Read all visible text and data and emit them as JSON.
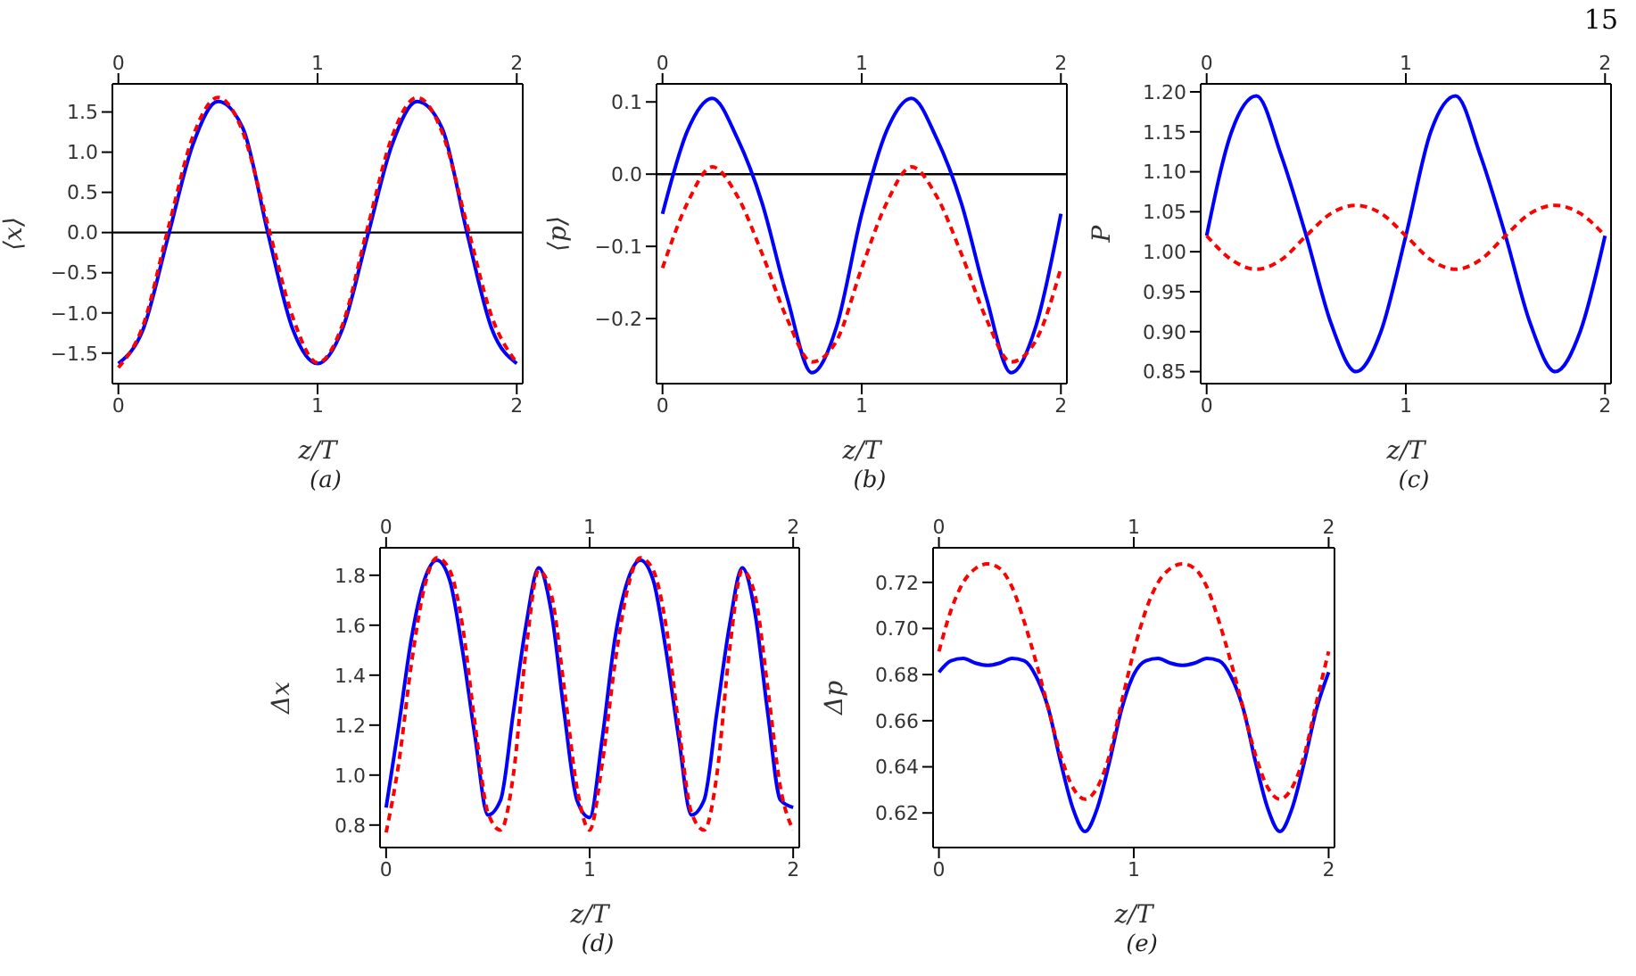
{
  "chart_data": [
    {
      "type": "line",
      "title": "(a)",
      "xlabel": "z/T",
      "ylabel": "⟨x⟩",
      "xlim": [
        -0.03,
        2.03
      ],
      "xticks": [
        0,
        1,
        2
      ],
      "x2lim": [
        -0.03,
        2.03
      ],
      "x2ticks": [
        0,
        1,
        2
      ],
      "ylim": [
        -1.88,
        1.85
      ],
      "yticks": [
        {
          "value": -1.5,
          "label": "−1.5"
        },
        {
          "value": -1,
          "label": "−1.0"
        },
        {
          "value": -0.5,
          "label": "−0.5"
        },
        {
          "value": 0,
          "label": "0.0"
        },
        {
          "value": 0.5,
          "label": "0.5"
        },
        {
          "value": 1,
          "label": "1.0"
        },
        {
          "value": 1.5,
          "label": "1.5"
        }
      ],
      "ref_lines": [
        {
          "axis": "y",
          "value": 0,
          "color": "#000000"
        }
      ],
      "x": [
        0,
        0.125,
        0.25,
        0.375,
        0.5,
        0.625,
        0.75,
        0.875,
        1,
        1.125,
        1.25,
        1.375,
        1.5,
        1.625,
        1.75,
        1.875,
        2
      ],
      "series": [
        {
          "color": "#0000ff",
          "line_style": "solid",
          "values": [
            -1.63,
            -1.2,
            -0.05,
            1.1,
            1.63,
            1.3,
            0,
            -1.2,
            -1.63,
            -1.2,
            -0.05,
            1.1,
            1.63,
            1.3,
            0,
            -1.2,
            -1.63
          ]
        },
        {
          "color": "#ff0000",
          "line_style": "dashed",
          "values": [
            -1.68,
            -1.15,
            0.05,
            1.2,
            1.68,
            1.25,
            0.1,
            -1.05,
            -1.62,
            -1.15,
            0.05,
            1.2,
            1.68,
            1.25,
            0.1,
            -1.05,
            -1.62
          ]
        }
      ]
    },
    {
      "type": "line",
      "title": "(b)",
      "xlabel": "z/T",
      "ylabel": "⟨p⟩",
      "xlim": [
        -0.03,
        2.03
      ],
      "xticks": [
        0,
        1,
        2
      ],
      "x2lim": [
        -0.03,
        2.03
      ],
      "x2ticks": [
        0,
        1,
        2
      ],
      "ylim": [
        -0.29,
        0.125
      ],
      "yticks": [
        {
          "value": -0.2,
          "label": "−0.2"
        },
        {
          "value": -0.1,
          "label": "−0.1"
        },
        {
          "value": 0,
          "label": "0.0"
        },
        {
          "value": 0.1,
          "label": "0.1"
        }
      ],
      "ref_lines": [
        {
          "axis": "y",
          "value": 0,
          "color": "#000000"
        }
      ],
      "x": [
        0,
        0.125,
        0.25,
        0.375,
        0.5,
        0.625,
        0.75,
        0.875,
        1,
        1.125,
        1.25,
        1.375,
        1.5,
        1.625,
        1.75,
        1.875,
        2
      ],
      "series": [
        {
          "color": "#0000ff",
          "line_style": "solid",
          "values": [
            -0.055,
            0.06,
            0.105,
            0.05,
            -0.04,
            -0.17,
            -0.275,
            -0.21,
            -0.055,
            0.06,
            0.105,
            0.05,
            -0.04,
            -0.17,
            -0.275,
            -0.21,
            -0.055
          ]
        },
        {
          "color": "#ff0000",
          "line_style": "dashed",
          "values": [
            -0.13,
            -0.04,
            0.01,
            -0.03,
            -0.11,
            -0.2,
            -0.26,
            -0.23,
            -0.13,
            -0.04,
            0.01,
            -0.03,
            -0.11,
            -0.2,
            -0.26,
            -0.23,
            -0.13
          ]
        }
      ]
    },
    {
      "type": "line",
      "title": "(c)",
      "xlabel": "z/T",
      "ylabel": "P",
      "annotations": [
        "15"
      ],
      "xlim": [
        -0.03,
        2.03
      ],
      "xticks": [
        0,
        1,
        2
      ],
      "x2lim": [
        -0.03,
        2.03
      ],
      "x2ticks": [
        0,
        1,
        2
      ],
      "ylim": [
        0.835,
        1.21
      ],
      "yticks": [
        {
          "value": 0.85,
          "label": "0.85"
        },
        {
          "value": 0.9,
          "label": "0.90"
        },
        {
          "value": 0.95,
          "label": "0.95"
        },
        {
          "value": 1,
          "label": "1.00"
        },
        {
          "value": 1.05,
          "label": "1.05"
        },
        {
          "value": 1.1,
          "label": "1.10"
        },
        {
          "value": 1.15,
          "label": "1.15"
        },
        {
          "value": 1.2,
          "label": "1.20"
        }
      ],
      "x": [
        0,
        0.125,
        0.25,
        0.375,
        0.5,
        0.625,
        0.75,
        0.875,
        1,
        1.125,
        1.25,
        1.375,
        1.5,
        1.625,
        1.75,
        1.875,
        2
      ],
      "series": [
        {
          "color": "#0000ff",
          "line_style": "solid",
          "values": [
            1.02,
            1.15,
            1.195,
            1.12,
            1.02,
            0.91,
            0.85,
            0.9,
            1.02,
            1.15,
            1.195,
            1.12,
            1.02,
            0.91,
            0.85,
            0.9,
            1.02
          ]
        },
        {
          "color": "#ff0000",
          "line_style": "dashed",
          "values": [
            1.02,
            0.99,
            0.978,
            0.99,
            1.02,
            1.048,
            1.058,
            1.048,
            1.02,
            0.99,
            0.978,
            0.99,
            1.02,
            1.048,
            1.058,
            1.048,
            1.02
          ]
        }
      ]
    },
    {
      "type": "line",
      "title": "(d)",
      "xlabel": "z/T",
      "ylabel": "Δx",
      "xlim": [
        -0.03,
        2.03
      ],
      "xticks": [
        0,
        1,
        2
      ],
      "x2lim": [
        -0.03,
        2.03
      ],
      "x2ticks": [
        0,
        1,
        2
      ],
      "ylim": [
        0.71,
        1.91
      ],
      "yticks": [
        {
          "value": 0.8,
          "label": "0.8"
        },
        {
          "value": 1,
          "label": "1.0"
        },
        {
          "value": 1.2,
          "label": "1.2"
        },
        {
          "value": 1.4,
          "label": "1.4"
        },
        {
          "value": 1.6,
          "label": "1.6"
        },
        {
          "value": 1.8,
          "label": "1.8"
        }
      ],
      "x": [
        0,
        0.0625,
        0.125,
        0.1875,
        0.25,
        0.3125,
        0.375,
        0.4375,
        0.5,
        0.5625,
        0.625,
        0.6875,
        0.75,
        0.8125,
        0.875,
        0.9375,
        1,
        1.0625,
        1.125,
        1.1875,
        1.25,
        1.3125,
        1.375,
        1.4375,
        1.5,
        1.5625,
        1.625,
        1.6875,
        1.75,
        1.8125,
        1.875,
        1.9375,
        2
      ],
      "series": [
        {
          "color": "#0000ff",
          "line_style": "solid",
          "values": [
            0.87,
            1.2,
            1.55,
            1.78,
            1.86,
            1.78,
            1.5,
            1.15,
            0.84,
            0.9,
            1.25,
            1.6,
            1.83,
            1.65,
            1.25,
            0.9,
            0.83,
            1.15,
            1.55,
            1.78,
            1.86,
            1.78,
            1.5,
            1.15,
            0.84,
            0.9,
            1.25,
            1.6,
            1.83,
            1.65,
            1.25,
            0.9,
            0.87
          ]
        },
        {
          "color": "#ff0000",
          "line_style": "dashed",
          "values": [
            0.77,
            1.05,
            1.45,
            1.75,
            1.87,
            1.82,
            1.6,
            1.2,
            0.85,
            0.78,
            1.0,
            1.5,
            1.82,
            1.72,
            1.35,
            0.95,
            0.78,
            1.05,
            1.45,
            1.75,
            1.87,
            1.82,
            1.6,
            1.2,
            0.85,
            0.78,
            1.0,
            1.5,
            1.82,
            1.72,
            1.35,
            0.95,
            0.78
          ]
        }
      ]
    },
    {
      "type": "line",
      "title": "(e)",
      "xlabel": "z/T",
      "ylabel": "Δp",
      "xlim": [
        -0.03,
        2.03
      ],
      "xticks": [
        0,
        1,
        2
      ],
      "x2lim": [
        -0.03,
        2.03
      ],
      "x2ticks": [
        0,
        1,
        2
      ],
      "ylim": [
        0.605,
        0.735
      ],
      "yticks": [
        {
          "value": 0.62,
          "label": "0.62"
        },
        {
          "value": 0.64,
          "label": "0.64"
        },
        {
          "value": 0.66,
          "label": "0.66"
        },
        {
          "value": 0.68,
          "label": "0.68"
        },
        {
          "value": 0.7,
          "label": "0.70"
        },
        {
          "value": 0.72,
          "label": "0.72"
        }
      ],
      "x": [
        0,
        0.0625,
        0.125,
        0.1875,
        0.25,
        0.3125,
        0.375,
        0.4375,
        0.5,
        0.5625,
        0.625,
        0.6875,
        0.75,
        0.8125,
        0.875,
        0.9375,
        1,
        1.0625,
        1.125,
        1.1875,
        1.25,
        1.3125,
        1.375,
        1.4375,
        1.5,
        1.5625,
        1.625,
        1.6875,
        1.75,
        1.8125,
        1.875,
        1.9375,
        2
      ],
      "series": [
        {
          "color": "#0000ff",
          "line_style": "solid",
          "values": [
            0.681,
            0.686,
            0.687,
            0.685,
            0.684,
            0.685,
            0.687,
            0.686,
            0.679,
            0.665,
            0.642,
            0.622,
            0.612,
            0.622,
            0.642,
            0.665,
            0.68,
            0.686,
            0.687,
            0.685,
            0.684,
            0.685,
            0.687,
            0.686,
            0.679,
            0.665,
            0.642,
            0.622,
            0.612,
            0.622,
            0.642,
            0.665,
            0.681
          ]
        },
        {
          "color": "#ff0000",
          "line_style": "dashed",
          "values": [
            0.69,
            0.708,
            0.72,
            0.726,
            0.728,
            0.726,
            0.718,
            0.703,
            0.685,
            0.665,
            0.645,
            0.631,
            0.626,
            0.631,
            0.645,
            0.668,
            0.69,
            0.708,
            0.72,
            0.726,
            0.728,
            0.726,
            0.718,
            0.703,
            0.685,
            0.665,
            0.645,
            0.631,
            0.626,
            0.631,
            0.645,
            0.668,
            0.69
          ]
        }
      ]
    }
  ]
}
